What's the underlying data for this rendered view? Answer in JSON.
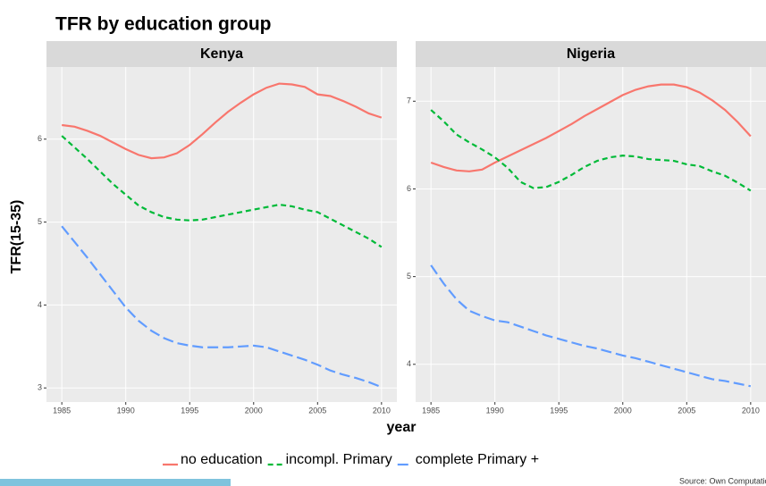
{
  "title": "TFR by education group",
  "y_label": "TFR(15-35)",
  "x_label": "year",
  "source": "Source: Own Computation",
  "chart_data": [
    {
      "type": "line",
      "title": "Kenya",
      "x": [
        1985,
        1986,
        1987,
        1988,
        1989,
        1990,
        1991,
        1992,
        1993,
        1994,
        1995,
        1996,
        1997,
        1998,
        1999,
        2000,
        2001,
        2002,
        2003,
        2004,
        2005,
        2006,
        2007,
        2008,
        2009,
        2010
      ],
      "series": [
        {
          "name": "no education",
          "color": "#F8766D",
          "linetype": "solid",
          "values": [
            6.17,
            6.15,
            6.1,
            6.04,
            5.96,
            5.88,
            5.81,
            5.77,
            5.78,
            5.83,
            5.93,
            6.06,
            6.2,
            6.33,
            6.44,
            6.54,
            6.62,
            6.67,
            6.66,
            6.63,
            6.54,
            6.52,
            6.46,
            6.39,
            6.31,
            6.26
          ]
        },
        {
          "name": "incompl. Primary",
          "color": "#00BA38",
          "linetype": "dashed",
          "values": [
            6.04,
            5.9,
            5.76,
            5.61,
            5.46,
            5.33,
            5.2,
            5.12,
            5.06,
            5.03,
            5.02,
            5.03,
            5.06,
            5.09,
            5.12,
            5.15,
            5.18,
            5.21,
            5.19,
            5.15,
            5.12,
            5.04,
            4.96,
            4.88,
            4.8,
            4.7
          ]
        },
        {
          "name": "complete Primary +",
          "color": "#619CFF",
          "linetype": "longdash",
          "values": [
            4.95,
            4.76,
            4.57,
            4.37,
            4.17,
            3.97,
            3.81,
            3.69,
            3.6,
            3.54,
            3.51,
            3.49,
            3.49,
            3.49,
            3.5,
            3.51,
            3.49,
            3.44,
            3.39,
            3.34,
            3.28,
            3.21,
            3.16,
            3.12,
            3.07,
            3.01
          ]
        }
      ],
      "xlim": [
        1983.8,
        2011.2
      ],
      "xticks": [
        1985,
        1990,
        1995,
        2000,
        2005,
        2010
      ],
      "ylim": [
        2.83,
        6.87
      ],
      "yticks": [
        3,
        4,
        5,
        6
      ],
      "grid": true
    },
    {
      "type": "line",
      "title": "Nigeria",
      "x": [
        1985,
        1986,
        1987,
        1988,
        1989,
        1990,
        1991,
        1992,
        1993,
        1994,
        1995,
        1996,
        1997,
        1998,
        1999,
        2000,
        2001,
        2002,
        2003,
        2004,
        2005,
        2006,
        2007,
        2008,
        2009,
        2010
      ],
      "series": [
        {
          "name": "no education",
          "color": "#F8766D",
          "linetype": "solid",
          "values": [
            6.3,
            6.25,
            6.21,
            6.2,
            6.22,
            6.3,
            6.37,
            6.44,
            6.51,
            6.58,
            6.66,
            6.74,
            6.83,
            6.91,
            6.99,
            7.07,
            7.13,
            7.17,
            7.19,
            7.19,
            7.16,
            7.1,
            7.01,
            6.9,
            6.76,
            6.6
          ]
        },
        {
          "name": "incompl. Primary",
          "color": "#00BA38",
          "linetype": "dashed",
          "values": [
            6.9,
            6.77,
            6.62,
            6.53,
            6.45,
            6.36,
            6.24,
            6.08,
            6.01,
            6.02,
            6.08,
            6.16,
            6.25,
            6.32,
            6.36,
            6.38,
            6.37,
            6.34,
            6.33,
            6.32,
            6.28,
            6.26,
            6.2,
            6.15,
            6.07,
            5.98
          ]
        },
        {
          "name": "complete Primary +",
          "color": "#619CFF",
          "linetype": "longdash",
          "values": [
            5.13,
            4.92,
            4.74,
            4.61,
            4.55,
            4.5,
            4.48,
            4.43,
            4.38,
            4.33,
            4.29,
            4.25,
            4.21,
            4.18,
            4.14,
            4.1,
            4.07,
            4.03,
            3.99,
            3.95,
            3.91,
            3.87,
            3.83,
            3.81,
            3.78,
            3.75
          ]
        }
      ],
      "xlim": [
        1983.8,
        2011.2
      ],
      "xticks": [
        1985,
        1990,
        1995,
        2000,
        2005,
        2010
      ],
      "ylim": [
        3.57,
        7.39
      ],
      "yticks": [
        4,
        5,
        6,
        7
      ],
      "grid": true
    }
  ]
}
